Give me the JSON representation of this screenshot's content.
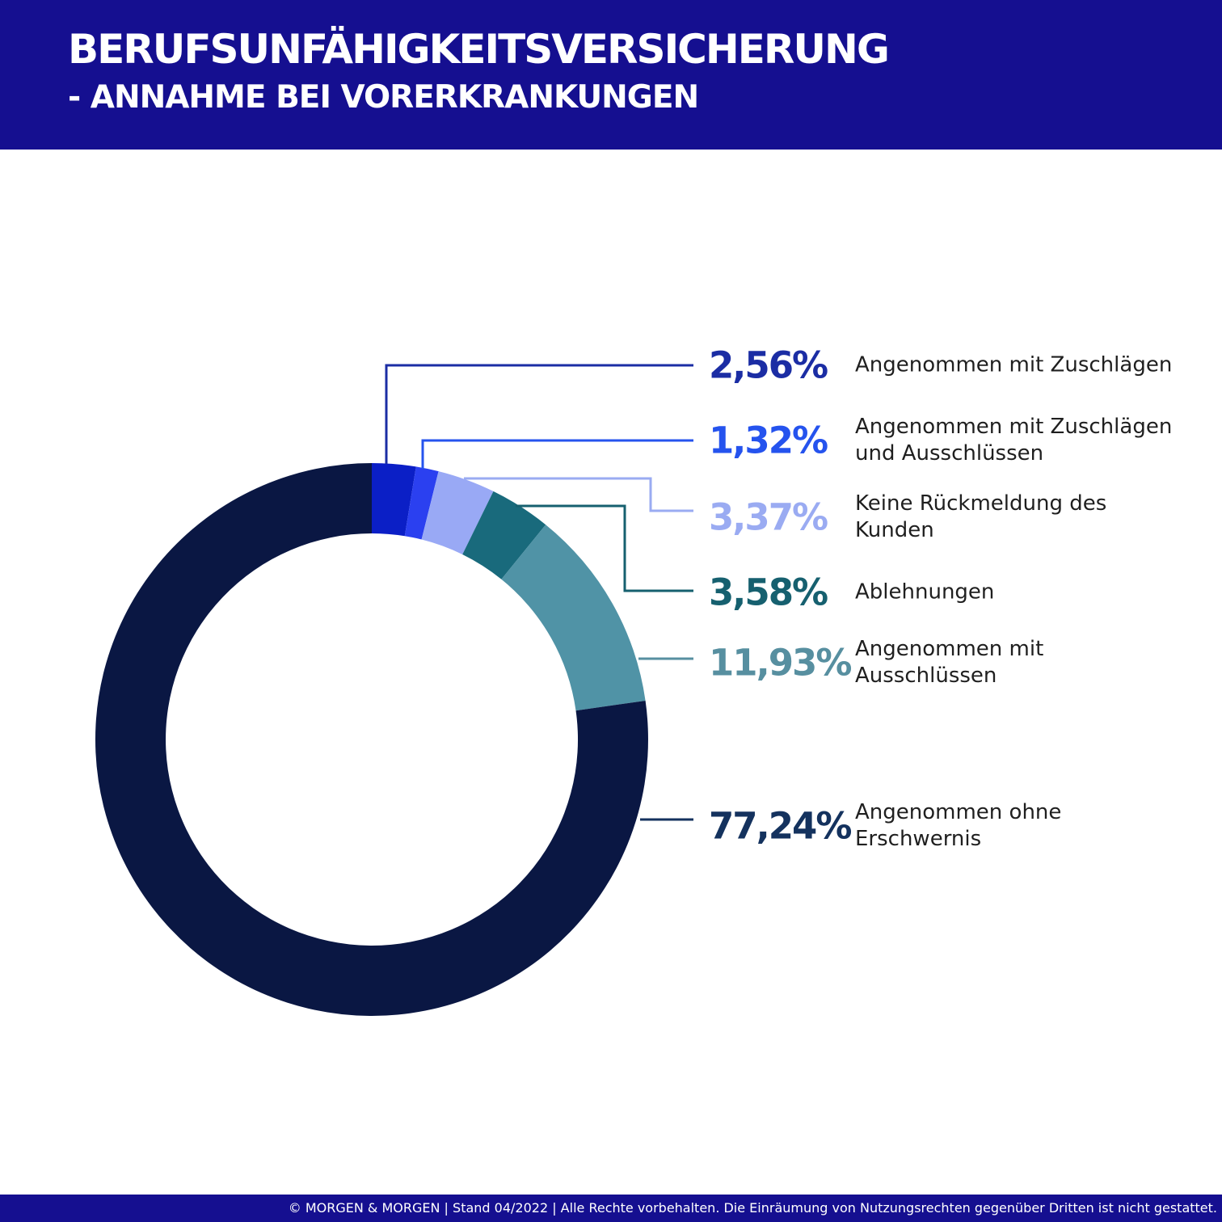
{
  "header": {
    "title": "BERUFSUNFÄHIGKEITSVERSICHERUNG",
    "subtitle": "- ANNAHME BEI VORERKRANKUNGEN",
    "band_color": "#150F90",
    "text_color": "#FFFFFF"
  },
  "footer": {
    "text": "© MORGEN & MORGEN | Stand 04/2022 | Alle Rechte vorbehalten. Die Einräumung von Nutzungsrechten gegenüber Dritten ist nicht gestattet.",
    "band_color": "#150F90",
    "text_color": "#FFFFFF"
  },
  "chart_data": {
    "type": "pie",
    "donut": true,
    "title": "Berufsunfähigkeitsversicherung - Annahme bei Vorerkrankungen",
    "start_angle_deg_from_top": 0,
    "direction": "clockwise",
    "legend_position": "right",
    "units": "%",
    "segments": [
      {
        "value": 2.56,
        "value_label": "2,56%",
        "label": "Angenommen mit Zuschlägen",
        "color": "#0B1FC6",
        "accent": "#1B2DA4"
      },
      {
        "value": 1.32,
        "value_label": "1,32%",
        "label": "Angenommen mit Zuschlägen\nund Ausschlüssen",
        "color": "#2B40F0",
        "accent": "#2553EE"
      },
      {
        "value": 3.37,
        "value_label": "3,37%",
        "label": "Keine Rückmeldung des\nKunden",
        "color": "#99A9F5",
        "accent": "#9AABF2"
      },
      {
        "value": 3.58,
        "value_label": "3,58%",
        "label": "Ablehnungen",
        "color": "#196A7C",
        "accent": "#16606F"
      },
      {
        "value": 11.93,
        "value_label": "11,93%",
        "label": "Angenommen mit\nAusschlüssen",
        "color": "#5093A6",
        "accent": "#578FA0"
      },
      {
        "value": 77.24,
        "value_label": "77,24%",
        "label": "Angenommen ohne\nErschwernis",
        "color": "#0A1743",
        "accent": "#14325E"
      }
    ]
  }
}
